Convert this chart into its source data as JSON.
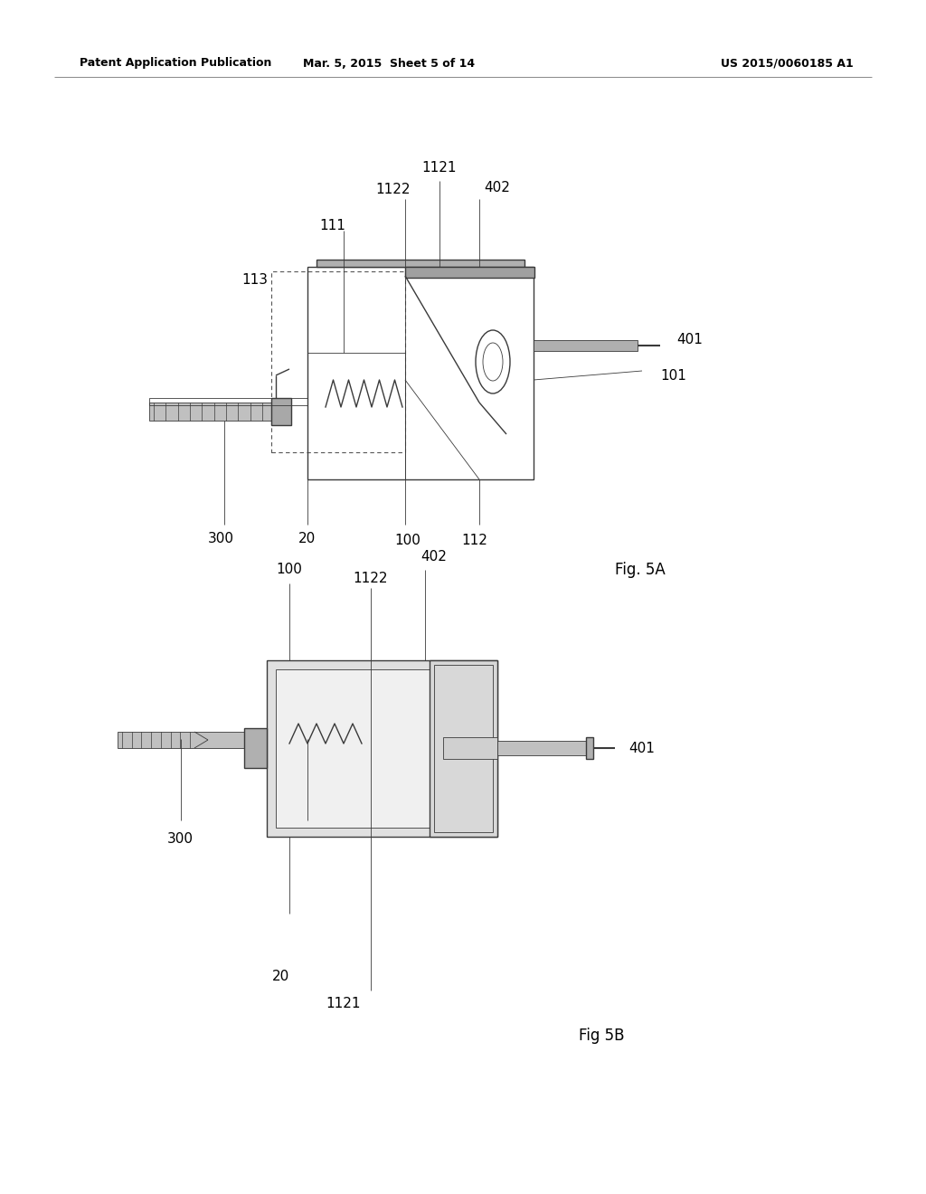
{
  "page_width": 10.24,
  "page_height": 13.2,
  "bg_color": "#ffffff",
  "header_left": "Patent Application Publication",
  "header_center": "Mar. 5, 2015  Sheet 5 of 14",
  "header_right": "US 2015/0060185 A1",
  "line_color": "#3a3a3a",
  "fig5a_label": "Fig. 5A",
  "fig5b_label": "Fig 5B"
}
